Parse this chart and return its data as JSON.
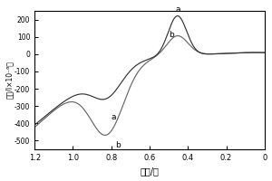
{
  "title": "",
  "xlabel": "电势/伏",
  "ylabel": "电流/I×10⁻⁶女",
  "xlim": [
    1.2,
    0.0
  ],
  "ylim": [
    -550,
    250
  ],
  "yticks": [
    200,
    100,
    0,
    -100,
    -200,
    -300,
    -400,
    -500
  ],
  "xticks": [
    1.2,
    1.0,
    0.8,
    0.6,
    0.4,
    0.2,
    0.0
  ],
  "background_color": "#ffffff",
  "curve_a_color": "#333333",
  "curve_b_color": "#666666"
}
